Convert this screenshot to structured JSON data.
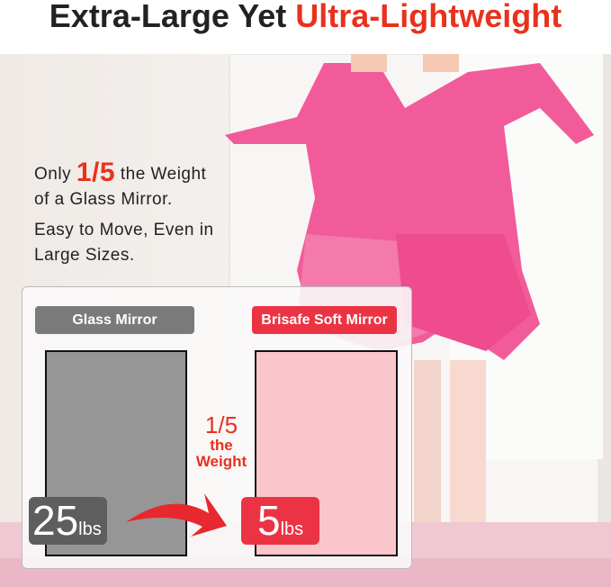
{
  "title": {
    "prefix": "Extra-Large Yet ",
    "highlight": "Ultra-Lightweight"
  },
  "copy": {
    "line1_pre": "Only ",
    "line1_big": "1/5",
    "line1_post": " the Weight",
    "line2": "of a Glass Mirror.",
    "line3": "Easy to Move, Even in",
    "line4": "Large Sizes."
  },
  "comparison": {
    "glass": {
      "label": "Glass Mirror",
      "weight": "25",
      "unit": "lbs",
      "color": "#969696"
    },
    "soft": {
      "label": "Brisafe Soft Mirror",
      "weight": "5",
      "unit": "lbs",
      "color": "#fbc6cb"
    },
    "ratio": "1/5",
    "ratio_line2": "the",
    "ratio_line3": "Weight",
    "accent": "#ec3343"
  }
}
